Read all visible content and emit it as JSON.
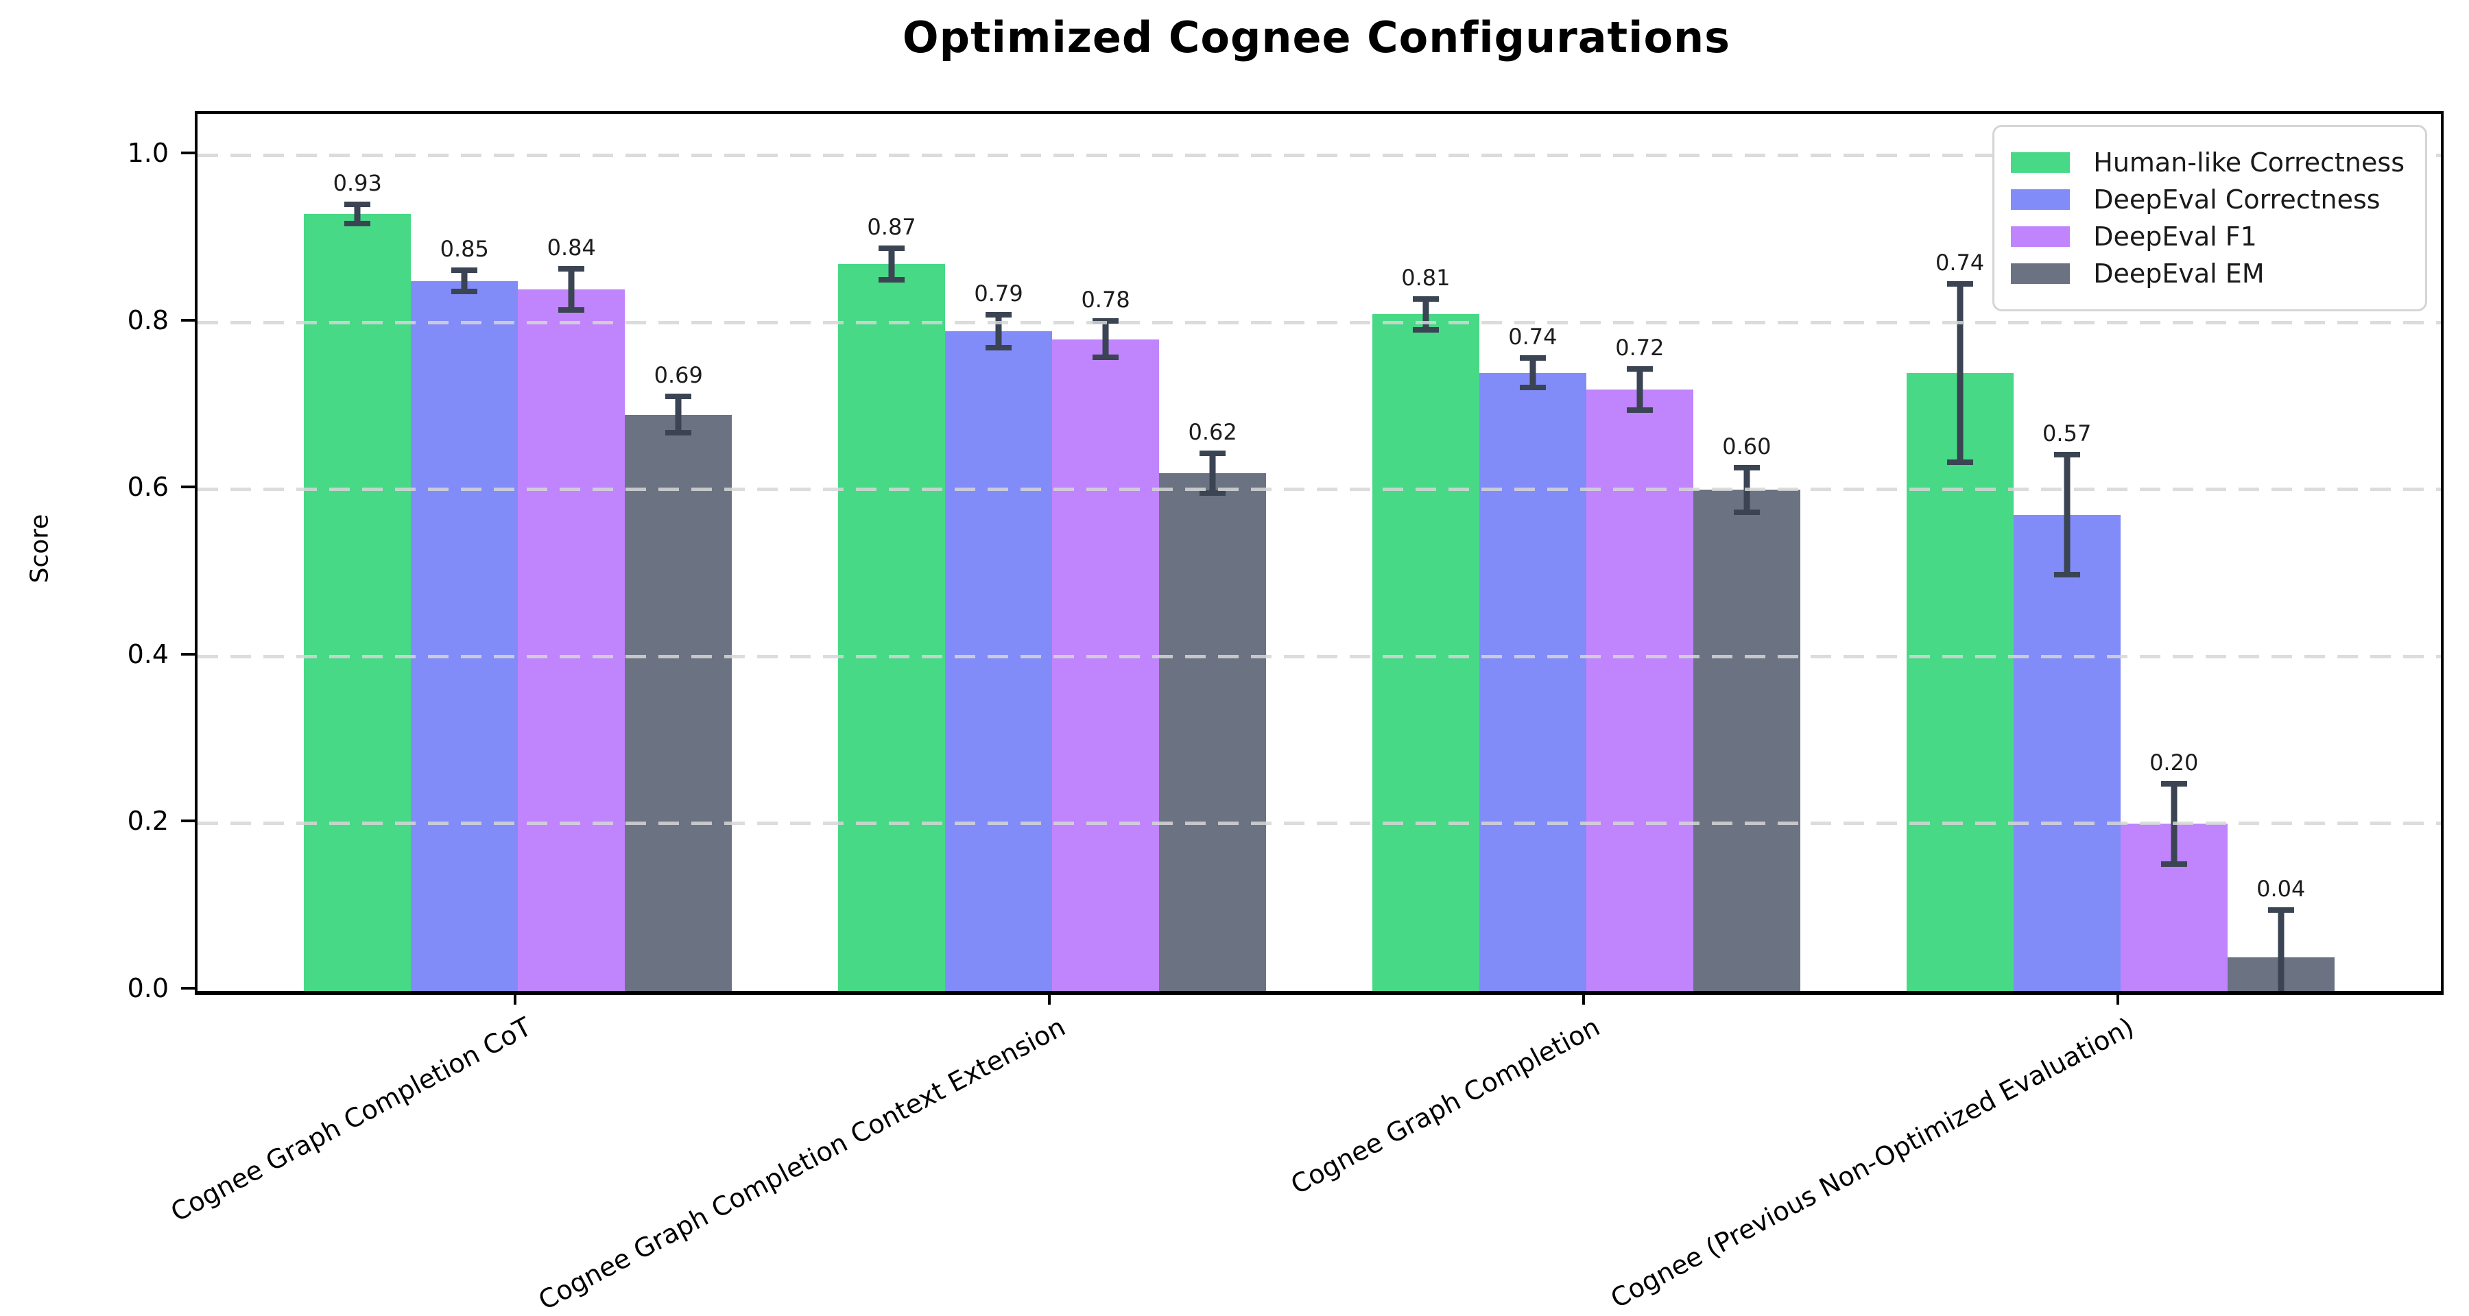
{
  "chart_data": {
    "type": "bar",
    "title": "Optimized Cognee Configurations",
    "ylabel": "Score",
    "xlabel": "",
    "ylim": [
      0,
      1.05
    ],
    "yticks": [
      0.0,
      0.2,
      0.4,
      0.6,
      0.8,
      1.0
    ],
    "ytick_labels": [
      "0.0",
      "0.2",
      "0.4",
      "0.6",
      "0.8",
      "1.0"
    ],
    "grid": "horizontal-dashed",
    "legend_position": "upper-right",
    "categories": [
      "Cognee Graph Completion CoT",
      "Cognee Graph Completion Context Extension",
      "Cognee Graph Completion",
      "Cognee (Previous Non-Optimized Evaluation)"
    ],
    "series": [
      {
        "name": "Human-like Correctness",
        "color": "#47d985",
        "values": [
          0.93,
          0.87,
          0.81,
          0.74
        ],
        "errors": [
          0.015,
          0.022,
          0.022,
          0.11
        ]
      },
      {
        "name": "DeepEval Correctness",
        "color": "#818cf8",
        "values": [
          0.85,
          0.79,
          0.74,
          0.57
        ],
        "errors": [
          0.016,
          0.023,
          0.021,
          0.075
        ]
      },
      {
        "name": "DeepEval F1",
        "color": "#c084fc",
        "values": [
          0.84,
          0.78,
          0.72,
          0.2
        ],
        "errors": [
          0.028,
          0.025,
          0.028,
          0.051
        ]
      },
      {
        "name": "DeepEval EM",
        "color": "#6b7383",
        "values": [
          0.69,
          0.62,
          0.6,
          0.04
        ],
        "errors": [
          0.025,
          0.027,
          0.03,
          0.06
        ]
      }
    ],
    "value_labels": [
      [
        "0.93",
        "0.87",
        "0.81",
        "0.74"
      ],
      [
        "0.85",
        "0.79",
        "0.74",
        "0.57"
      ],
      [
        "0.84",
        "0.78",
        "0.72",
        "0.20"
      ],
      [
        "0.69",
        "0.62",
        "0.60",
        "0.04"
      ]
    ],
    "errorbar_color": "#3a4453",
    "gridline_color": "#d6d6d6",
    "axis_color": "#000000"
  }
}
